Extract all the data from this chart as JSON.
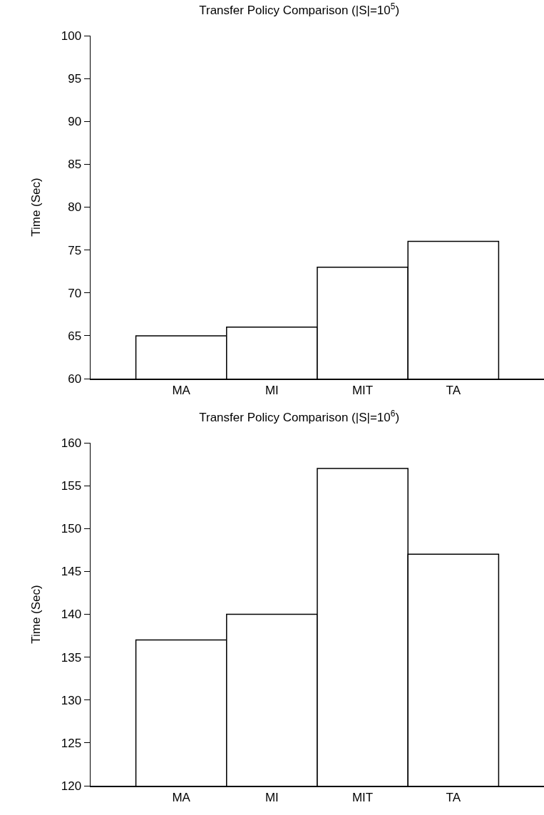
{
  "chart_data": [
    {
      "type": "bar",
      "title": "Transfer Policy Comparison (|S|=10$^{5}$)",
      "ylabel": "Time (Sec)",
      "categories": [
        "MA",
        "MI",
        "MIT",
        "TA"
      ],
      "values": [
        65,
        66,
        73,
        76
      ],
      "color": "#ffffff",
      "ylim": [
        60,
        100
      ],
      "yticks": [
        60,
        65,
        70,
        75,
        80,
        85,
        90,
        95,
        100
      ]
    },
    {
      "type": "bar",
      "title": "Transfer Policy Comparison (|S|=10$^{6}$)",
      "ylabel": "Time (Sec)",
      "categories": [
        "MA",
        "MI",
        "MIT",
        "TA"
      ],
      "values": [
        137,
        140,
        157,
        147
      ],
      "color": "#ffffff",
      "ylim": [
        120,
        160
      ],
      "yticks": [
        120,
        125,
        130,
        135,
        140,
        145,
        150,
        155,
        160
      ]
    }
  ]
}
